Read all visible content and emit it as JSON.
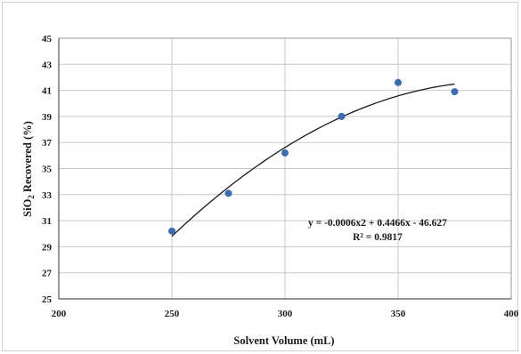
{
  "chart_data": {
    "type": "scatter",
    "title": "",
    "xlabel": "Solvent Volume (mL)",
    "ylabel_main": "SiO",
    "ylabel_sub": "2",
    "ylabel_rest": " Recovered (%)",
    "xlim": [
      200,
      400
    ],
    "ylim": [
      25,
      45
    ],
    "xticks": [
      200,
      250,
      300,
      350,
      400
    ],
    "yticks": [
      25,
      27,
      29,
      31,
      33,
      35,
      37,
      39,
      41,
      43,
      45
    ],
    "grid": true,
    "points": [
      {
        "x": 250,
        "y": 30.2
      },
      {
        "x": 275,
        "y": 33.1
      },
      {
        "x": 300,
        "y": 36.2
      },
      {
        "x": 325,
        "y": 39.0
      },
      {
        "x": 350,
        "y": 41.6
      },
      {
        "x": 375,
        "y": 40.9
      }
    ],
    "trendline": {
      "type": "polynomial",
      "order": 2,
      "coefficients": [
        -0.0006,
        0.4466,
        -46.627
      ],
      "x_range": [
        250,
        375
      ]
    },
    "equation_text": "y = -0.0006x2 + 0.4466x - 46.627",
    "r2_text": "R² = 0.9817",
    "colors": {
      "marker": "#3e6cb3",
      "trendline": "#1a1a1a",
      "grid": "#c8c8c8",
      "text": "#1a1a1a"
    }
  }
}
